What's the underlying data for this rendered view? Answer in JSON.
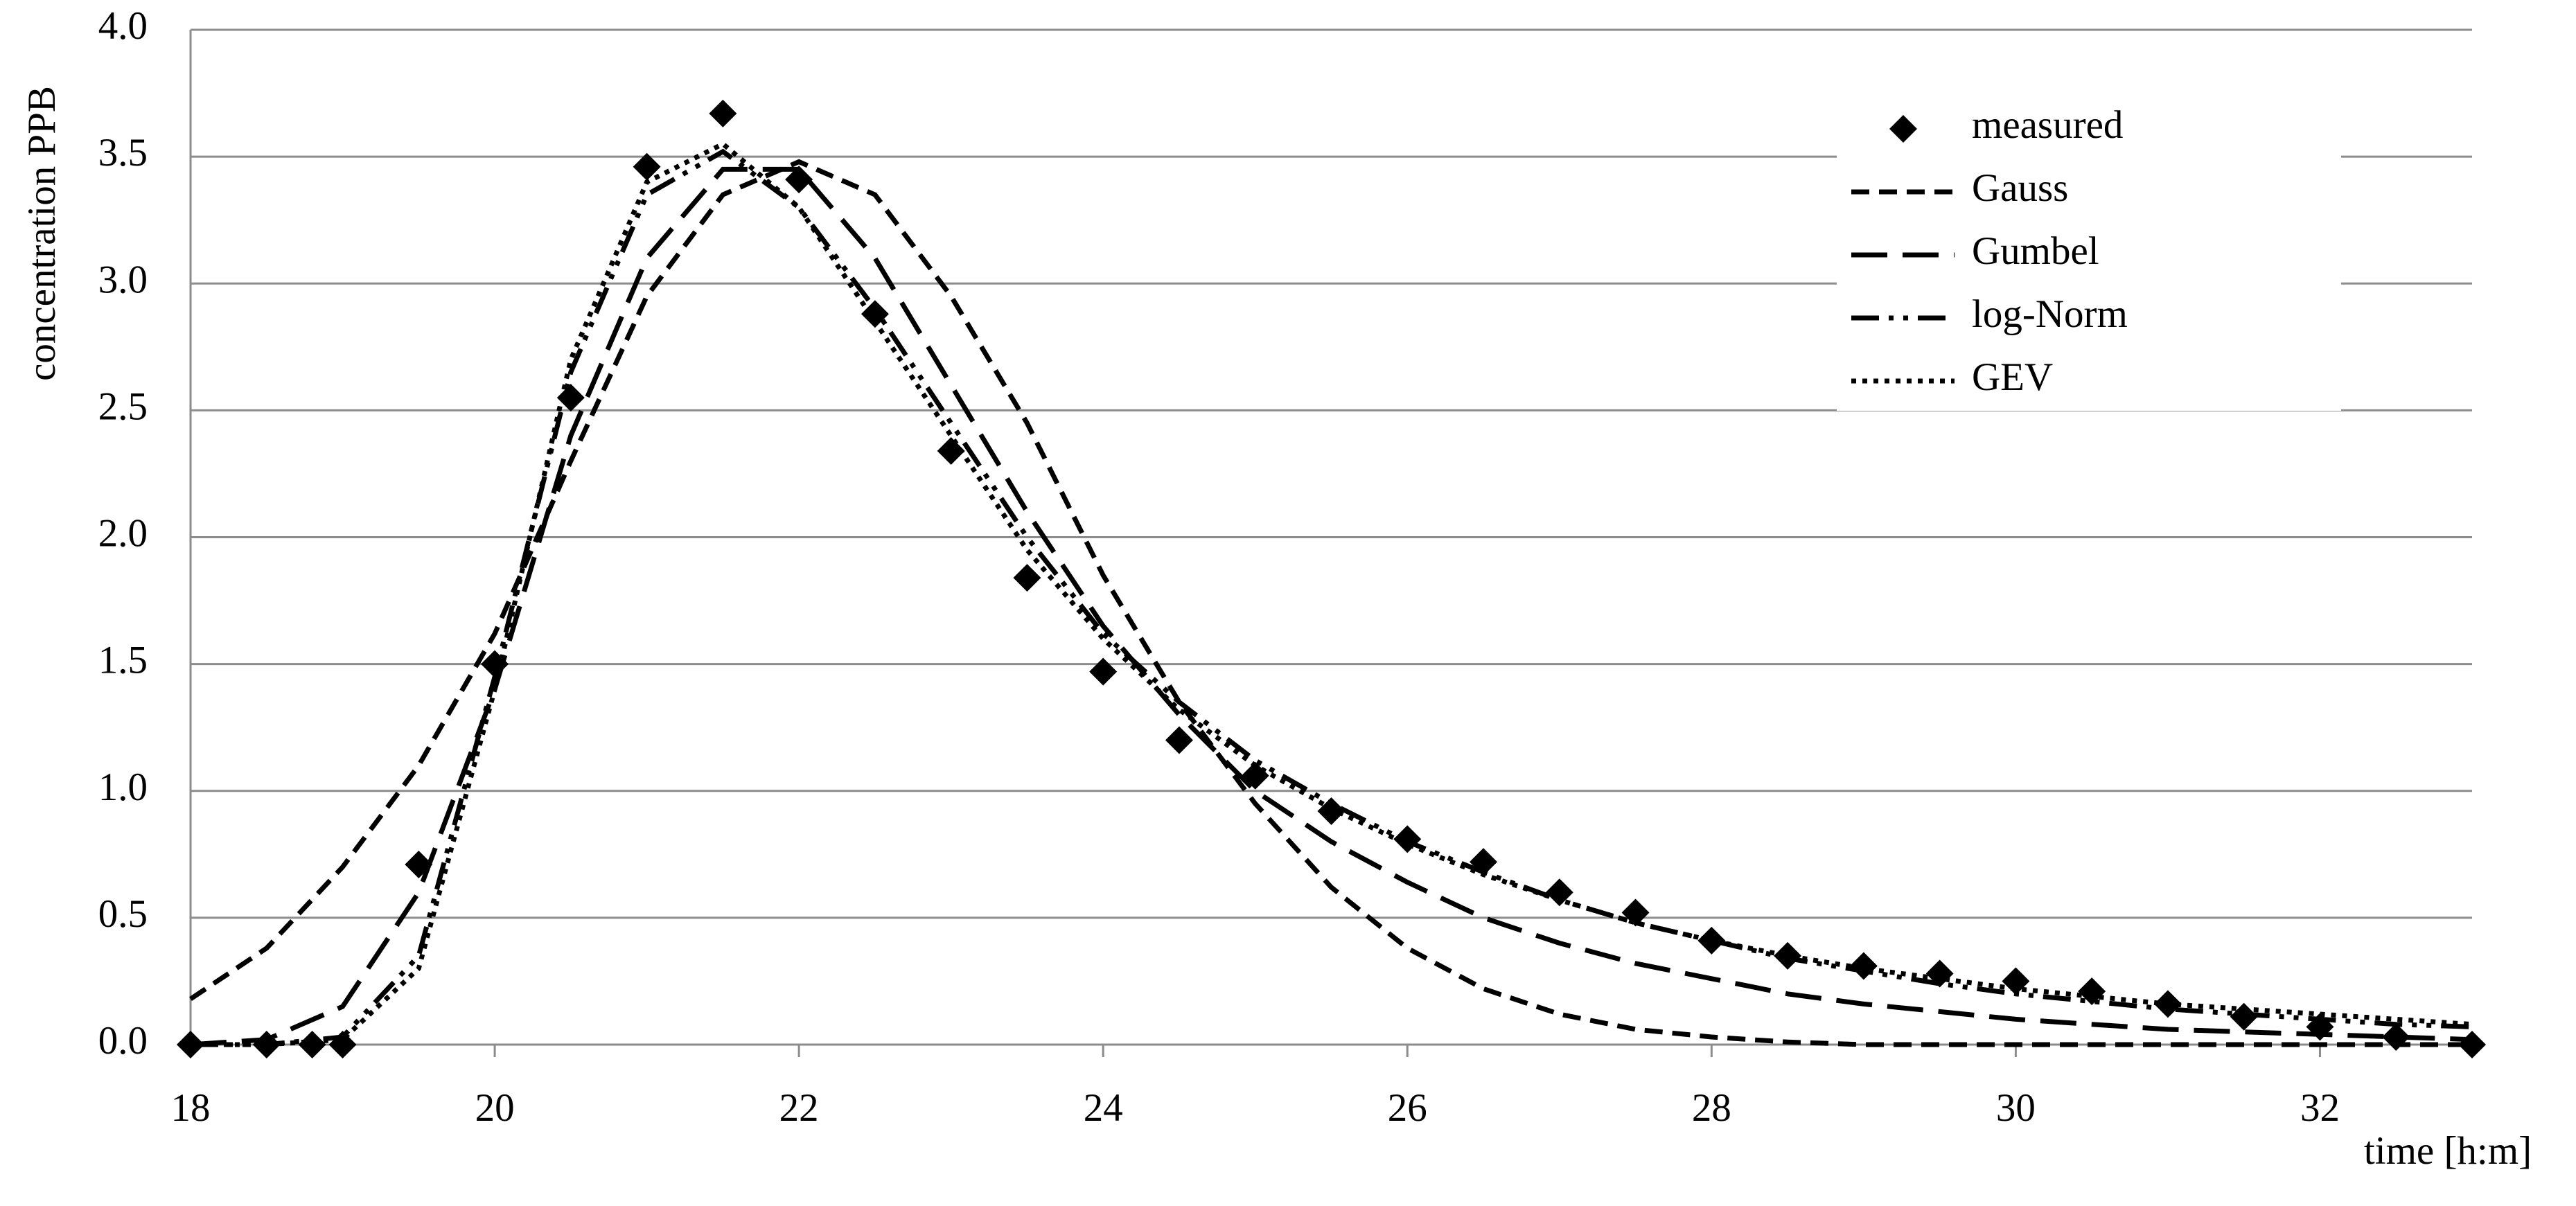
{
  "chart_data": {
    "type": "line",
    "x_label": "time  [h:m]",
    "y_label": "concentration PPB",
    "xlim": [
      18,
      33
    ],
    "ylim": [
      0,
      4
    ],
    "xticks": [
      18,
      20,
      22,
      24,
      26,
      28,
      30,
      32
    ],
    "yticks": [
      {
        "value": 0,
        "label": "0.0"
      },
      {
        "value": 0.5,
        "label": "0.5"
      },
      {
        "value": 1,
        "label": "1.0"
      },
      {
        "value": 1.5,
        "label": "1.5"
      },
      {
        "value": 2,
        "label": "2.0"
      },
      {
        "value": 2.5,
        "label": "2.5"
      },
      {
        "value": 3,
        "label": "3.0"
      },
      {
        "value": 3.5,
        "label": "3.5"
      },
      {
        "value": 4,
        "label": "4.0"
      }
    ],
    "grid": true,
    "legend": "upper right",
    "series": [
      {
        "name": "measured",
        "color": "#000000",
        "style": "diamond",
        "x": [
          18,
          18.5,
          18.8,
          19,
          19.5,
          20,
          20.5,
          21,
          21.5,
          22,
          22.5,
          23,
          23.5,
          24,
          24.5,
          25,
          25.5,
          26,
          26.5,
          27,
          27.5,
          28,
          28.5,
          29,
          29.5,
          30,
          30.5,
          31,
          31.5,
          32,
          32.5,
          33
        ],
        "values": [
          0,
          0,
          0,
          0,
          0.71,
          1.5,
          2.55,
          3.46,
          3.67,
          3.41,
          2.88,
          2.34,
          1.84,
          1.47,
          1.2,
          1.06,
          0.92,
          0.81,
          0.72,
          0.6,
          0.52,
          0.41,
          0.35,
          0.31,
          0.28,
          0.25,
          0.21,
          0.16,
          0.11,
          0.07,
          0.03,
          0
        ]
      },
      {
        "name": "Gauss",
        "color": "#000000",
        "style": "dashed",
        "x": [
          18,
          18.5,
          19,
          19.5,
          20,
          20.5,
          21,
          21.5,
          22,
          22.5,
          23,
          23.5,
          24,
          24.5,
          25,
          25.5,
          26,
          26.5,
          27,
          27.5,
          28,
          28.5,
          29,
          29.5,
          30,
          30.5,
          31,
          31.5,
          32,
          32.5,
          33
        ],
        "values": [
          0.18,
          0.38,
          0.7,
          1.1,
          1.62,
          2.3,
          2.95,
          3.35,
          3.48,
          3.35,
          2.95,
          2.45,
          1.85,
          1.35,
          0.95,
          0.62,
          0.38,
          0.22,
          0.12,
          0.06,
          0.03,
          0.01,
          0,
          0,
          0,
          0,
          0,
          0,
          0,
          0,
          0
        ]
      },
      {
        "name": "Gumbel",
        "color": "#000000",
        "style": "long-dashed",
        "x": [
          18,
          18.5,
          19,
          19.5,
          20,
          20.5,
          21,
          21.5,
          22,
          22.5,
          23,
          23.5,
          24,
          24.5,
          25,
          25.5,
          26,
          26.5,
          27,
          27.5,
          28,
          28.5,
          29,
          29.5,
          30,
          30.5,
          31,
          31.5,
          32,
          32.5,
          33
        ],
        "values": [
          0,
          0.02,
          0.15,
          0.6,
          1.4,
          2.4,
          3.1,
          3.45,
          3.45,
          3.1,
          2.6,
          2.1,
          1.65,
          1.3,
          1,
          0.8,
          0.64,
          0.5,
          0.4,
          0.32,
          0.26,
          0.2,
          0.16,
          0.13,
          0.1,
          0.08,
          0.06,
          0.05,
          0.04,
          0.03,
          0.02
        ]
      },
      {
        "name": "log-Norm",
        "color": "#000000",
        "style": "dash-dot-dot",
        "x": [
          18,
          18.5,
          19,
          19.5,
          20,
          20.5,
          21,
          21.5,
          22,
          22.5,
          23,
          23.5,
          24,
          24.5,
          25,
          25.5,
          26,
          26.5,
          27,
          27.5,
          28,
          28.5,
          29,
          29.5,
          30,
          30.5,
          31,
          31.5,
          32,
          32.5,
          33
        ],
        "values": [
          0,
          0,
          0.03,
          0.35,
          1.45,
          2.65,
          3.35,
          3.52,
          3.3,
          2.9,
          2.45,
          2,
          1.62,
          1.35,
          1.12,
          0.95,
          0.8,
          0.68,
          0.57,
          0.48,
          0.41,
          0.34,
          0.29,
          0.24,
          0.2,
          0.17,
          0.14,
          0.12,
          0.1,
          0.08,
          0.07
        ]
      },
      {
        "name": "GEV",
        "color": "#000000",
        "style": "dotted",
        "x": [
          18,
          18.5,
          19,
          19.5,
          20,
          20.5,
          21,
          21.5,
          22,
          22.5,
          23,
          23.5,
          24,
          24.5,
          25,
          25.5,
          26,
          26.5,
          27,
          27.5,
          28,
          28.5,
          29,
          29.5,
          30,
          30.5,
          31,
          31.5,
          32,
          32.5,
          33
        ],
        "values": [
          0,
          0,
          0.02,
          0.3,
          1.4,
          2.7,
          3.4,
          3.55,
          3.3,
          2.85,
          2.4,
          1.95,
          1.6,
          1.32,
          1.1,
          0.93,
          0.79,
          0.67,
          0.57,
          0.48,
          0.41,
          0.35,
          0.3,
          0.26,
          0.22,
          0.19,
          0.16,
          0.14,
          0.12,
          0.1,
          0.08
        ]
      }
    ]
  }
}
